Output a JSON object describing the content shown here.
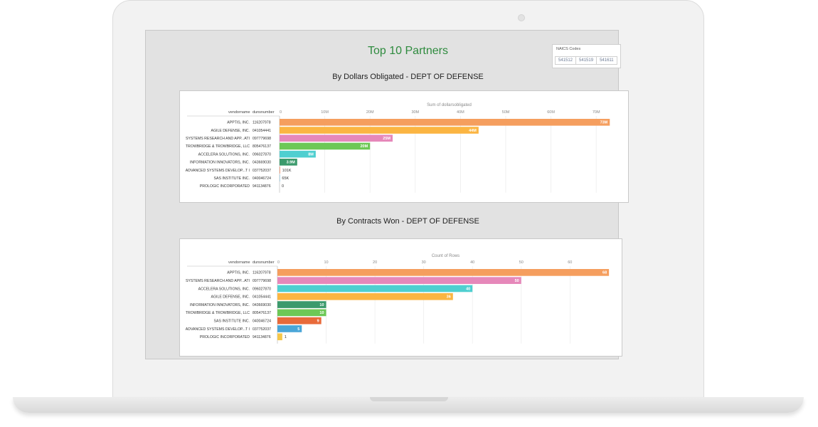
{
  "page": {
    "title": "Top 10 Partners",
    "naics": {
      "label": "NAICS Codes",
      "codes": [
        "541512",
        "541519",
        "541611"
      ]
    }
  },
  "chart_data": [
    {
      "type": "bar",
      "title": "By Dollars Obligated - DEPT OF DEFENSE",
      "xlabel": "Sum of dollarsobligated",
      "columns": [
        "vendorname",
        "dunsnumber"
      ],
      "rows": [
        {
          "name": "APPTIS, INC.",
          "duns": "116207978",
          "value": 73,
          "label": "73M",
          "color": "#f59e5e"
        },
        {
          "name": "AGILE DEFENSE, INC.",
          "duns": "041054441",
          "value": 44,
          "label": "44M",
          "color": "#fbb542"
        },
        {
          "name": "SYSTEMS RESEARCH AND APP...ATI",
          "duns": "097779698",
          "value": 25,
          "label": "25M",
          "color": "#e688ba"
        },
        {
          "name": "TROWBRIDGE & TROWBRIDGE, LLC",
          "duns": "805476137",
          "value": 20,
          "label": "20M",
          "color": "#6dc856"
        },
        {
          "name": "ACCELERA SOLUTIONS, INC.",
          "duns": "096027870",
          "value": 8,
          "label": "8M",
          "color": "#4fcfd0"
        },
        {
          "name": "INFORMATION INNOVATORS, INC.",
          "duns": "043669030",
          "value": 3.9,
          "label": "3.9M",
          "color": "#3b9a6c"
        },
        {
          "name": "ADVANCED SYSTEMS DEVELOP...T I",
          "duns": "037752037",
          "value": 0.101,
          "label": "101K",
          "color": "#e86a3a"
        },
        {
          "name": "SAS INSTITUTE INC.",
          "duns": "040046724",
          "value": 0.065,
          "label": "65K",
          "color": "#4aa6d8"
        },
        {
          "name": "PROLOGIC INCORPORATED",
          "duns": "941134876",
          "value": 0,
          "label": "0",
          "color": "#f5c74a"
        }
      ],
      "xlim": [
        0,
        75
      ],
      "xticks": [
        0,
        10,
        20,
        30,
        40,
        50,
        60,
        70
      ],
      "xtick_labels": [
        "0",
        "10M",
        "20M",
        "30M",
        "40M",
        "50M",
        "60M",
        "70M"
      ],
      "grid": true
    },
    {
      "type": "bar",
      "title": "By Contracts Won - DEPT OF DEFENSE",
      "xlabel": "Count of Rows",
      "columns": [
        "vendorname",
        "dunsnumber"
      ],
      "rows": [
        {
          "name": "APPTIS, INC.",
          "duns": "116207978",
          "value": 68,
          "label": "68",
          "color": "#f59e5e"
        },
        {
          "name": "SYSTEMS RESEARCH AND APP...ATI",
          "duns": "097779698",
          "value": 50,
          "label": "50",
          "color": "#e688ba"
        },
        {
          "name": "ACCELERA SOLUTIONS, INC.",
          "duns": "096027870",
          "value": 40,
          "label": "40",
          "color": "#4fcfd0"
        },
        {
          "name": "AGILE DEFENSE, INC.",
          "duns": "041054441",
          "value": 36,
          "label": "36",
          "color": "#fbb542"
        },
        {
          "name": "INFORMATION INNOVATORS, INC.",
          "duns": "043669030",
          "value": 10,
          "label": "10",
          "color": "#3b9a6c"
        },
        {
          "name": "TROWBRIDGE & TROWBRIDGE, LLC",
          "duns": "805476137",
          "value": 10,
          "label": "10",
          "color": "#6dc856"
        },
        {
          "name": "SAS INSTITUTE INC.",
          "duns": "040046724",
          "value": 9,
          "label": "9",
          "color": "#e86a3a"
        },
        {
          "name": "ADVANCED SYSTEMS DEVELOP...T I",
          "duns": "037752037",
          "value": 5,
          "label": "5",
          "color": "#4aa6d8"
        },
        {
          "name": "PROLOGIC INCORPORATED",
          "duns": "941134876",
          "value": 1,
          "label": "1",
          "color": "#f5c74a"
        }
      ],
      "xlim": [
        0,
        69
      ],
      "xticks": [
        0,
        10,
        20,
        30,
        40,
        50,
        60
      ],
      "xtick_labels": [
        "0",
        "10",
        "20",
        "30",
        "40",
        "50",
        "60"
      ],
      "grid": true
    }
  ]
}
